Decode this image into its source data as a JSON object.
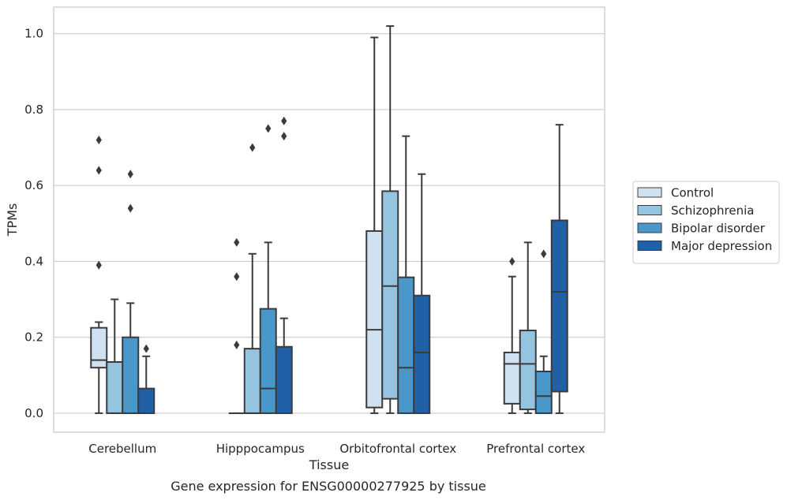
{
  "chart_data": {
    "type": "box",
    "title": "",
    "caption": "Gene expression for ENSG00000277925 by tissue",
    "xlabel": "Tissue",
    "ylabel": "TPMs",
    "ylim": [
      -0.05,
      1.07
    ],
    "yticks": [
      "0.0",
      "0.2",
      "0.4",
      "0.6",
      "0.8",
      "1.0"
    ],
    "grid": "horizontal",
    "legend_position": "right",
    "categories": [
      "Cerebellum",
      "Hipppocampus",
      "Orbitofrontal cortex",
      "Prefrontal cortex"
    ],
    "series": [
      {
        "name": "Control",
        "color": "#d0e1f2",
        "boxes": [
          {
            "whislo": 0.0,
            "q1": 0.12,
            "med": 0.14,
            "q3": 0.225,
            "whishi": 0.24,
            "fliers": [
              0.39,
              0.64,
              0.72
            ]
          },
          {
            "whislo": 0.0,
            "q1": 0.0,
            "med": 0.0,
            "q3": 0.0,
            "whishi": 0.0,
            "fliers": [
              0.18,
              0.36,
              0.45
            ]
          },
          {
            "whislo": 0.0,
            "q1": 0.015,
            "med": 0.22,
            "q3": 0.48,
            "whishi": 0.99,
            "fliers": []
          },
          {
            "whislo": 0.0,
            "q1": 0.025,
            "med": 0.13,
            "q3": 0.16,
            "whishi": 0.36,
            "fliers": [
              0.4
            ]
          }
        ]
      },
      {
        "name": "Schizophrenia",
        "color": "#94c4df",
        "boxes": [
          {
            "whislo": 0.0,
            "q1": 0.0,
            "med": 0.135,
            "q3": 0.135,
            "whishi": 0.3,
            "fliers": []
          },
          {
            "whislo": 0.0,
            "q1": 0.0,
            "med": 0.0,
            "q3": 0.17,
            "whishi": 0.42,
            "fliers": [
              0.7
            ]
          },
          {
            "whislo": 0.0,
            "q1": 0.038,
            "med": 0.335,
            "q3": 0.585,
            "whishi": 1.02,
            "fliers": []
          },
          {
            "whislo": 0.0,
            "q1": 0.01,
            "med": 0.13,
            "q3": 0.218,
            "whishi": 0.45,
            "fliers": []
          }
        ]
      },
      {
        "name": "Bipolar disorder",
        "color": "#4a98c9",
        "boxes": [
          {
            "whislo": 0.0,
            "q1": 0.0,
            "med": 0.0,
            "q3": 0.2,
            "whishi": 0.29,
            "fliers": [
              0.54,
              0.63
            ]
          },
          {
            "whislo": 0.0,
            "q1": 0.0,
            "med": 0.065,
            "q3": 0.275,
            "whishi": 0.45,
            "fliers": [
              0.75
            ]
          },
          {
            "whislo": 0.0,
            "q1": 0.0,
            "med": 0.12,
            "q3": 0.358,
            "whishi": 0.73,
            "fliers": []
          },
          {
            "whislo": 0.0,
            "q1": 0.0,
            "med": 0.045,
            "q3": 0.11,
            "whishi": 0.15,
            "fliers": [
              0.42
            ]
          }
        ]
      },
      {
        "name": "Major depression",
        "color": "#2060a7",
        "boxes": [
          {
            "whislo": 0.0,
            "q1": 0.0,
            "med": 0.0,
            "q3": 0.065,
            "whishi": 0.15,
            "fliers": [
              0.17
            ]
          },
          {
            "whislo": 0.0,
            "q1": 0.0,
            "med": 0.0,
            "q3": 0.175,
            "whishi": 0.25,
            "fliers": [
              0.73,
              0.77
            ]
          },
          {
            "whislo": 0.0,
            "q1": 0.0,
            "med": 0.16,
            "q3": 0.31,
            "whishi": 0.63,
            "fliers": []
          },
          {
            "whislo": 0.0,
            "q1": 0.057,
            "med": 0.32,
            "q3": 0.508,
            "whishi": 0.76,
            "fliers": []
          }
        ]
      }
    ]
  }
}
